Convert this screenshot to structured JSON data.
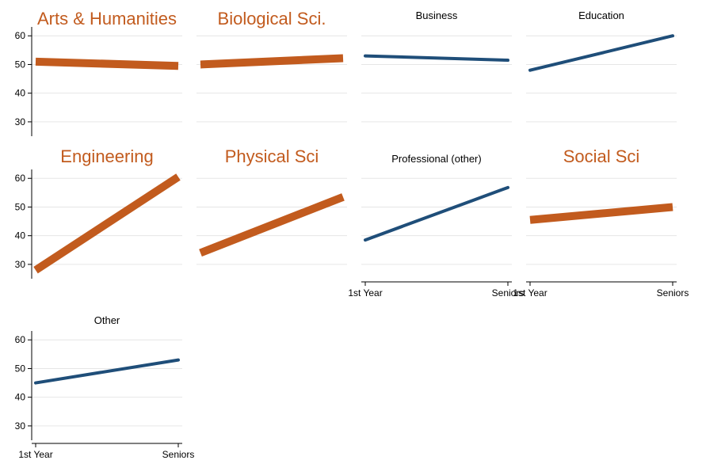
{
  "chart_data": {
    "type": "line",
    "x_categories": [
      "1st Year",
      "Seniors"
    ],
    "ylim": [
      25,
      62
    ],
    "yticks": [
      30,
      40,
      50,
      60
    ],
    "grid": true,
    "highlight_color": "#C25B1E",
    "base_color": "#1F4E79",
    "panels": [
      {
        "title": "Arts & Humanities",
        "highlight": true,
        "values": [
          51,
          49.5
        ]
      },
      {
        "title": "Biological Sci.",
        "highlight": true,
        "values": [
          50,
          52.2
        ]
      },
      {
        "title": "Business",
        "highlight": false,
        "values": [
          53,
          51.5
        ]
      },
      {
        "title": "Education",
        "highlight": false,
        "values": [
          48,
          60
        ]
      },
      {
        "title": "Engineering",
        "highlight": true,
        "values": [
          28,
          60.5
        ]
      },
      {
        "title": "Physical Sci",
        "highlight": true,
        "values": [
          34,
          53.5
        ]
      },
      {
        "title": "Professional (other)",
        "highlight": false,
        "values": [
          38.5,
          56.8
        ]
      },
      {
        "title": "Social Sci",
        "highlight": true,
        "values": [
          45.5,
          50
        ]
      },
      {
        "title": "Other",
        "highlight": false,
        "values": [
          45,
          53
        ]
      }
    ]
  }
}
